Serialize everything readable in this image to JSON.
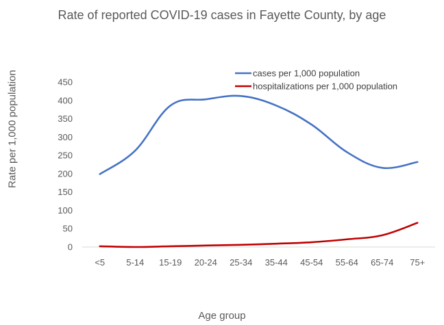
{
  "chart_data": {
    "type": "line",
    "title": "Rate of reported COVID-19 cases in Fayette County, by age",
    "xlabel": "Age group",
    "ylabel": "Rate per 1,000 population",
    "categories": [
      "<5",
      "5-14",
      "15-19",
      "20-24",
      "25-34",
      "35-44",
      "45-54",
      "55-64",
      "65-74",
      "75+"
    ],
    "ylim": [
      0,
      450
    ],
    "yticks": [
      "0",
      "50",
      "100",
      "150",
      "200",
      "250",
      "300",
      "350",
      "400",
      "450"
    ],
    "grid": false,
    "legend_position": "top-right",
    "series": [
      {
        "name": "cases per 1,000 population",
        "color": "#4472C4",
        "values": [
          199,
          263,
          386,
          403,
          412,
          386,
          334,
          259,
          216,
          232
        ]
      },
      {
        "name": "hospitalizations per 1,000 population",
        "color": "#C00000",
        "values": [
          2,
          0,
          2,
          4,
          6,
          9,
          13,
          21,
          32,
          66
        ]
      }
    ]
  }
}
